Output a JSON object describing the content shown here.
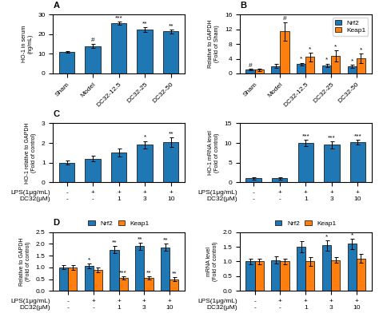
{
  "chart_data": [
    {
      "type": "bar",
      "title": "A",
      "categories": [
        "Sham",
        "Model",
        "DC32-12.5",
        "DC32-25",
        "DC32-50"
      ],
      "values": [
        11.0,
        14.0,
        25.5,
        22.5,
        21.5
      ],
      "errors": [
        0.5,
        1.0,
        0.8,
        1.2,
        1.0
      ],
      "ylabel": "HO-1 in serum\n(ng/mL)",
      "ylim": [
        0,
        30
      ],
      "yticks": [
        0,
        10,
        20,
        30
      ],
      "annotations": [
        {
          "text": "#",
          "category": "Model"
        },
        {
          "text": "***",
          "category": "DC32-12.5"
        },
        {
          "text": "**",
          "category": "DC32-25"
        },
        {
          "text": "**",
          "category": "DC32-50"
        }
      ]
    },
    {
      "type": "bar",
      "title": "B",
      "categories": [
        "Sham",
        "Model",
        "DC32-12.5",
        "DC32-25",
        "DC32-50"
      ],
      "series": [
        {
          "name": "Nrf2",
          "values": [
            1.0,
            2.0,
            2.5,
            2.2,
            2.0
          ],
          "errors": [
            0.2,
            0.5,
            0.4,
            0.5,
            0.4
          ]
        },
        {
          "name": "Keap1",
          "values": [
            1.0,
            11.5,
            4.5,
            4.8,
            4.2
          ],
          "errors": [
            0.3,
            2.5,
            1.2,
            1.5,
            1.3
          ]
        }
      ],
      "ylabel": "Relative to GAPDH\n(Fold of Sham)",
      "ylim": [
        0,
        16
      ],
      "yticks": [
        0,
        4,
        8,
        12,
        16
      ],
      "legend": "upper right",
      "annotations": [
        {
          "text": "#",
          "category": "Sham",
          "series": "Nrf2"
        },
        {
          "text": "*",
          "category": "DC32-12.5",
          "series": "Nrf2"
        },
        {
          "text": "*",
          "category": "DC32-25",
          "series": "Nrf2"
        },
        {
          "text": "*",
          "category": "DC32-50",
          "series": "Nrf2"
        },
        {
          "text": "#",
          "category": "Model",
          "series": "Keap1"
        },
        {
          "text": "*",
          "category": "DC32-12.5",
          "series": "Keap1"
        },
        {
          "text": "*",
          "category": "DC32-25",
          "series": "Keap1"
        },
        {
          "text": "*",
          "category": "DC32-50",
          "series": "Keap1"
        }
      ]
    },
    {
      "type": "bar",
      "title": "C",
      "categories": [
        "-\n-",
        "+\n-",
        "+\n1",
        "+\n3",
        "+\n10"
      ],
      "xlabel": "LPS(1μg/mL)\nDC32(μM)",
      "values": [
        1.0,
        1.2,
        1.5,
        1.9,
        2.05
      ],
      "errors": [
        0.1,
        0.15,
        0.2,
        0.2,
        0.25
      ],
      "ylabel": "HO-1 relative to GAPDH\n(Fold of control)",
      "ylim": [
        0,
        3
      ],
      "yticks": [
        0,
        1,
        2,
        3
      ],
      "annotations": [
        {
          "text": "*",
          "category": "+\n3"
        },
        {
          "text": "**",
          "category": "+\n10"
        }
      ]
    },
    {
      "type": "bar",
      "categories": [
        "-\n-",
        "+\n-",
        "+\n1",
        "+\n3",
        "+\n10"
      ],
      "xlabel": "LPS(1μg/mL)\nDC32(μM)",
      "values": [
        1.0,
        1.0,
        10.0,
        9.5,
        10.2
      ],
      "errors": [
        0.3,
        0.3,
        0.8,
        0.9,
        0.7
      ],
      "ylabel": "HO-1 mRNA level\n(Fold of control)",
      "ylim": [
        0,
        15
      ],
      "yticks": [
        0,
        5,
        10,
        15
      ],
      "annotations": [
        {
          "text": "***",
          "category": "+\n1"
        },
        {
          "text": "***",
          "category": "+\n3"
        },
        {
          "text": "***",
          "category": "+\n10"
        }
      ]
    },
    {
      "type": "bar",
      "title": "D",
      "categories": [
        "-\n-",
        "+\n-",
        "+\n1",
        "+\n3",
        "+\n10"
      ],
      "xlabel": "LPS(1μg/mL)\nDC32(μM)",
      "series": [
        {
          "name": "Nrf2",
          "values": [
            1.0,
            1.05,
            1.75,
            1.9,
            1.85
          ],
          "errors": [
            0.08,
            0.1,
            0.15,
            0.15,
            0.15
          ]
        },
        {
          "name": "Keap1",
          "values": [
            1.0,
            0.9,
            0.55,
            0.55,
            0.5
          ],
          "errors": [
            0.1,
            0.1,
            0.08,
            0.08,
            0.08
          ]
        }
      ],
      "ylabel": "Relative to GAPDH\n(Fold of control)",
      "ylim": [
        0,
        2.5
      ],
      "yticks": [
        0.0,
        0.5,
        1.0,
        1.5,
        2.0,
        2.5
      ],
      "legend": "above",
      "annotations": [
        {
          "text": "*",
          "category": "+\n-",
          "series": "Nrf2"
        },
        {
          "text": "**",
          "category": "+\n1",
          "series": "Nrf2"
        },
        {
          "text": "**",
          "category": "+\n3",
          "series": "Nrf2"
        },
        {
          "text": "**",
          "category": "+\n10",
          "series": "Nrf2"
        },
        {
          "text": "***",
          "category": "+\n1",
          "series": "Keap1"
        },
        {
          "text": "**",
          "category": "+\n3",
          "series": "Keap1"
        },
        {
          "text": "**",
          "category": "+\n10",
          "series": "Keap1"
        }
      ]
    },
    {
      "type": "bar",
      "categories": [
        "-\n-",
        "+\n-",
        "+\n1",
        "+\n3",
        "+\n10"
      ],
      "xlabel": "LPS(1μg/mL)\nDC32(μM)",
      "series": [
        {
          "name": "Nrf2",
          "values": [
            1.0,
            1.05,
            1.5,
            1.55,
            1.6
          ],
          "errors": [
            0.1,
            0.12,
            0.2,
            0.18,
            0.18
          ]
        },
        {
          "name": "Keap1",
          "values": [
            1.0,
            1.0,
            1.0,
            1.05,
            1.1
          ],
          "errors": [
            0.1,
            0.1,
            0.15,
            0.1,
            0.15
          ]
        }
      ],
      "ylabel": "mRNA level\n(Fold of control)",
      "ylim": [
        0,
        2.0
      ],
      "yticks": [
        0.0,
        0.5,
        1.0,
        1.5,
        2.0
      ],
      "legend": "above",
      "annotations": [
        {
          "text": "*",
          "category": "+\n3",
          "series": "Nrf2"
        },
        {
          "text": "*",
          "category": "+\n10",
          "series": "Nrf2"
        }
      ]
    }
  ]
}
